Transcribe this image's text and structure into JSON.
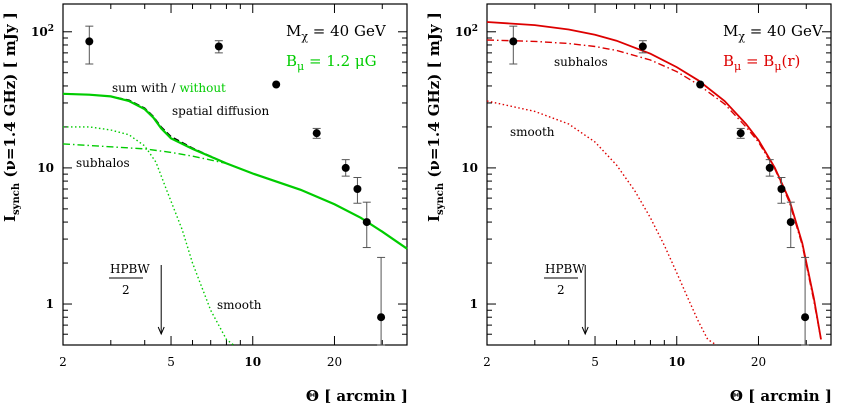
{
  "chart_data": [
    {
      "type": "line",
      "title": "",
      "xlabel": "Θ [ arcmin ]",
      "ylabel": "I_synch (ν=1.4 GHz) [ mJy ]",
      "xscale": "log",
      "yscale": "log",
      "xlim": [
        2,
        37
      ],
      "ylim": [
        0.5,
        160
      ],
      "x_ticks": [
        "2",
        "5",
        "10",
        "20"
      ],
      "y_ticks": [
        "1",
        "10",
        "10²"
      ],
      "annotations": {
        "mass": "Mχ = 40 GeV",
        "field": "Bμ = 1.2 μG",
        "sum_label_a": "sum with /",
        "sum_label_b": "without",
        "sum_label_c": "spatial diffusion",
        "subhalos": "subhalos",
        "smooth": "smooth",
        "hpbw_num": "HPBW",
        "hpbw_den": "2"
      },
      "hpbw_arrow_x": 4.6,
      "colors": {
        "black": "#000000",
        "green": "#00cc00",
        "red": "#dd0000"
      },
      "series": [
        {
          "name": "sum with",
          "style": "dashed",
          "color": "#000000",
          "x": [
            2,
            2.5,
            3,
            3.5,
            4,
            4.3,
            4.6,
            5,
            6,
            8,
            10,
            15,
            20,
            25,
            30,
            37
          ],
          "y": [
            35,
            34.5,
            33.5,
            31.5,
            27.5,
            24,
            20,
            17,
            14,
            10.8,
            9.1,
            6.9,
            5.4,
            4.3,
            3.4,
            2.55
          ]
        },
        {
          "name": "without",
          "style": "solid",
          "color": "#00cc00",
          "x": [
            2,
            2.5,
            3,
            3.5,
            4,
            4.3,
            4.6,
            5,
            6,
            8,
            10,
            15,
            20,
            25,
            30,
            37
          ],
          "y": [
            35,
            34.5,
            33.5,
            31,
            27,
            23.5,
            19.5,
            16.5,
            13.8,
            10.8,
            9.1,
            6.9,
            5.4,
            4.3,
            3.4,
            2.55
          ]
        },
        {
          "name": "subhalos",
          "style": "dashdot",
          "color": "#00cc00",
          "x": [
            2,
            3,
            4,
            5,
            6,
            8,
            10,
            15,
            20,
            25,
            30,
            37
          ],
          "y": [
            15,
            14.3,
            13.8,
            13,
            12.2,
            10.8,
            9.1,
            6.9,
            5.4,
            4.3,
            3.4,
            2.55
          ]
        },
        {
          "name": "smooth",
          "style": "dotted",
          "color": "#00cc00",
          "x": [
            2,
            2.5,
            3,
            3.5,
            4,
            4.4,
            4.8,
            5.5,
            6,
            7,
            8,
            8.5
          ],
          "y": [
            20,
            20,
            19,
            17.5,
            14.5,
            11,
            7,
            3.5,
            2,
            0.9,
            0.55,
            0.45
          ]
        }
      ],
      "data_points": {
        "x": [
          2.5,
          7.5,
          12.2,
          17.2,
          22,
          24.3,
          26.3,
          29.7
        ],
        "y": [
          85,
          78,
          41,
          18,
          10,
          7,
          4,
          0.8
        ],
        "err_low": [
          58,
          70,
          41,
          16.5,
          8.7,
          5.5,
          2.6,
          0.4
        ],
        "err_high": [
          110,
          86,
          41,
          19.5,
          11.5,
          8.5,
          5.6,
          2.2
        ]
      }
    },
    {
      "type": "line",
      "title": "",
      "xlabel": "Θ [ arcmin ]",
      "ylabel": "I_synch (ν=1.4 GHz) [ mJy ]",
      "xscale": "log",
      "yscale": "log",
      "xlim": [
        2,
        37
      ],
      "ylim": [
        0.5,
        160
      ],
      "x_ticks": [
        "2",
        "5",
        "10",
        "20"
      ],
      "y_ticks": [
        "1",
        "10",
        "10²"
      ],
      "annotations": {
        "mass": "Mχ = 40 GeV",
        "field": "Bμ = Bμ(r)",
        "subhalos": "subhalos",
        "smooth": "smooth",
        "hpbw_num": "HPBW",
        "hpbw_den": "2"
      },
      "hpbw_arrow_x": 4.6,
      "colors": {
        "black": "#000000",
        "red": "#dd0000"
      },
      "series": [
        {
          "name": "sum",
          "style": "solid",
          "color": "#dd0000",
          "x": [
            2,
            3,
            4,
            5,
            6,
            8,
            10,
            12,
            15,
            18,
            20,
            23,
            26,
            29,
            32,
            34
          ],
          "y": [
            118,
            112,
            104,
            95,
            86,
            69,
            55,
            44,
            31,
            21,
            16,
            10,
            5.8,
            2.8,
            1.1,
            0.55
          ]
        },
        {
          "name": "subhalos",
          "style": "dashdot",
          "color": "#dd0000",
          "x": [
            2,
            3,
            4,
            5,
            6,
            8,
            10,
            12,
            15,
            18,
            20,
            23,
            26,
            29,
            32,
            34
          ],
          "y": [
            87,
            85,
            82,
            78,
            73,
            62,
            51,
            41,
            29.5,
            20,
            15.5,
            9.8,
            5.6,
            2.7,
            1.05,
            0.55
          ]
        },
        {
          "name": "smooth",
          "style": "dotted",
          "color": "#dd0000",
          "x": [
            2,
            3,
            4,
            5,
            6,
            7,
            8,
            9,
            10,
            11,
            12,
            13,
            14
          ],
          "y": [
            31,
            26,
            21,
            15.5,
            10.5,
            6.8,
            4.3,
            2.7,
            1.7,
            1.1,
            0.75,
            0.55,
            0.45
          ]
        }
      ],
      "data_points": {
        "x": [
          2.5,
          7.5,
          12.2,
          17.2,
          22,
          24.3,
          26.3,
          29.7
        ],
        "y": [
          85,
          78,
          41,
          18,
          10,
          7,
          4,
          0.8
        ],
        "err_low": [
          58,
          70,
          41,
          16.5,
          8.7,
          5.5,
          2.6,
          0.4
        ],
        "err_high": [
          110,
          86,
          41,
          19.5,
          11.5,
          8.5,
          5.6,
          2.2
        ]
      }
    }
  ]
}
